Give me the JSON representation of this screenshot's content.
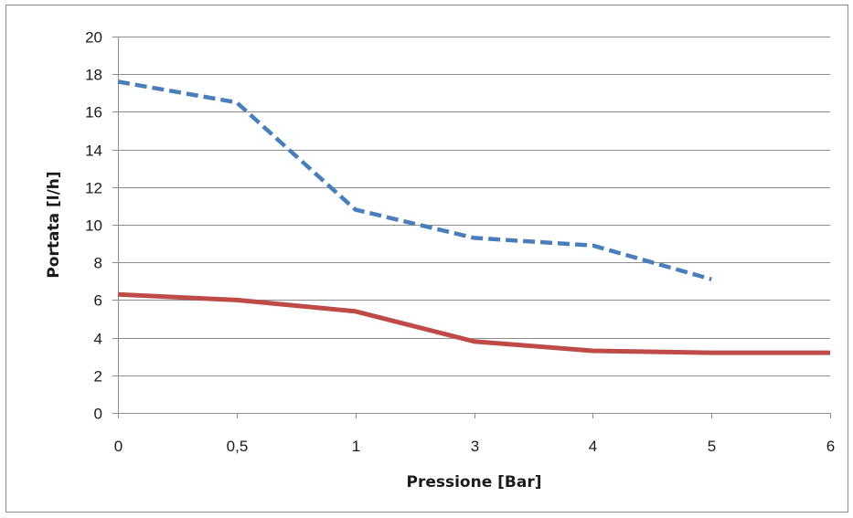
{
  "chart_data": {
    "type": "line",
    "title": "",
    "xlabel": "Pressione [Bar]",
    "ylabel": "Portata [l/h]",
    "categories": [
      "0",
      "0,5",
      "1",
      "3",
      "4",
      "5",
      "6"
    ],
    "ylim": [
      0,
      20
    ],
    "yticks": [
      0,
      2,
      4,
      6,
      8,
      10,
      12,
      14,
      16,
      18,
      20
    ],
    "grid": true,
    "legend": "none",
    "series": [
      {
        "style": "dashed",
        "color": "#4a7ebb",
        "values": [
          17.6,
          16.5,
          10.8,
          9.3,
          8.9,
          7.1,
          null
        ]
      },
      {
        "style": "solid",
        "color": "#be4b48",
        "values": [
          6.3,
          6.0,
          5.4,
          3.8,
          3.3,
          3.2,
          3.2
        ]
      }
    ]
  }
}
